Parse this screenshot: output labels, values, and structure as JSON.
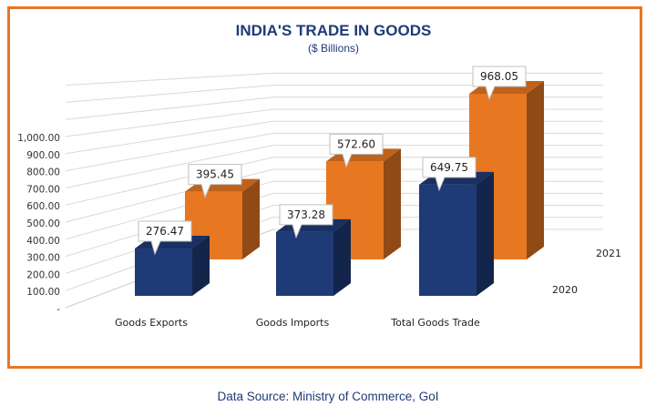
{
  "chart_data": {
    "type": "bar",
    "title": "INDIA'S TRADE IN GOODS",
    "subtitle": "($ Billions)",
    "categories": [
      "Goods Exports",
      "Goods Imports",
      "Total Goods Trade"
    ],
    "series": [
      {
        "name": "2020",
        "values": [
          276.47,
          373.28,
          649.75
        ],
        "color": "#1f3b77"
      },
      {
        "name": "2021",
        "values": [
          395.45,
          572.6,
          968.05
        ],
        "color": "#e87722"
      }
    ],
    "value_labels": [
      [
        "276.47",
        "373.28",
        "649.75"
      ],
      [
        "395.45",
        "572.60",
        "968.05"
      ]
    ],
    "yticks": [
      "-",
      "100.00",
      "200.00",
      "300.00",
      "400.00",
      "500.00",
      "600.00",
      "700.00",
      "800.00",
      "900.00",
      "1,000.00"
    ],
    "ylim": [
      0,
      1000
    ],
    "grid": true,
    "view": "3d"
  },
  "footer": {
    "source": "Data Source: Ministry of Commerce, GoI"
  }
}
